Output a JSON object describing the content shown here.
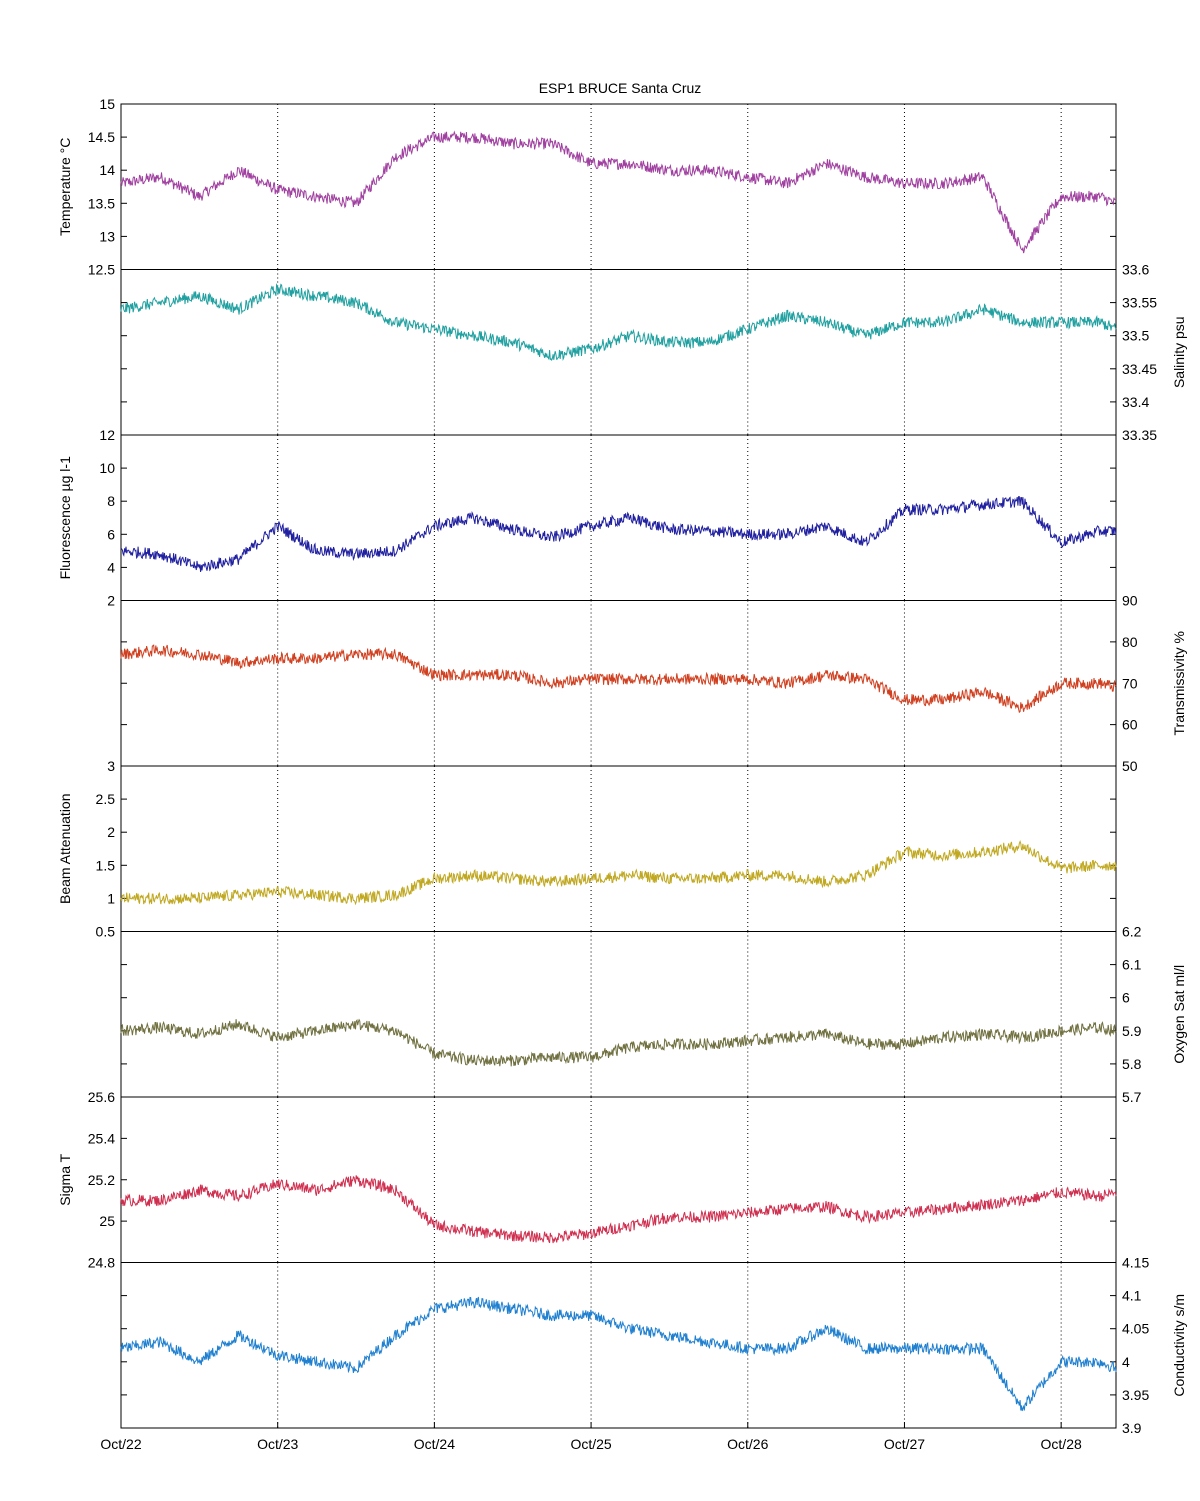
{
  "chart_data": {
    "type": "line",
    "title": "ESP1 BRUCE Santa Cruz",
    "x_ticks": [
      "Oct/22",
      "Oct/23",
      "Oct/24",
      "Oct/25",
      "Oct/26",
      "Oct/27",
      "Oct/28"
    ],
    "xlim": [
      "Oct/22 00:00",
      "Oct/28 09:00"
    ],
    "grid": "vertical dotted lines at day ticks",
    "x_days": [
      0,
      0.25,
      0.5,
      0.75,
      1.0,
      1.25,
      1.5,
      1.75,
      2.0,
      2.25,
      2.5,
      2.75,
      3.0,
      3.25,
      3.5,
      3.75,
      4.0,
      4.25,
      4.5,
      4.75,
      5.0,
      5.25,
      5.5,
      5.75,
      6.0,
      6.25,
      6.35
    ],
    "panels": [
      {
        "name": "Temperature °C",
        "axis_side": "left",
        "color": "#a040a0",
        "ylim": [
          12.5,
          15
        ],
        "ticks": [
          "12.5",
          "13",
          "13.5",
          "14",
          "14.5",
          "15"
        ],
        "values": [
          13.8,
          13.9,
          13.6,
          14.0,
          13.7,
          13.6,
          13.5,
          14.2,
          14.5,
          14.5,
          14.4,
          14.4,
          14.1,
          14.1,
          14.0,
          14.0,
          13.9,
          13.8,
          14.1,
          13.9,
          13.8,
          13.8,
          13.9,
          12.8,
          13.6,
          13.6,
          13.5
        ]
      },
      {
        "name": "Salinity psu",
        "axis_side": "right",
        "color": "#20a0a0",
        "ylim": [
          33.35,
          33.6
        ],
        "ticks": [
          "33.35",
          "33.4",
          "33.45",
          "33.5",
          "33.55",
          "33.6"
        ],
        "values": [
          33.54,
          33.55,
          33.56,
          33.54,
          33.57,
          33.56,
          33.55,
          33.52,
          33.51,
          33.5,
          33.49,
          33.47,
          33.48,
          33.5,
          33.49,
          33.49,
          33.51,
          33.53,
          33.52,
          33.5,
          33.52,
          33.52,
          33.54,
          33.52,
          33.52,
          33.52,
          33.51
        ]
      },
      {
        "name": "Fluorescence µg l-1",
        "axis_side": "left",
        "color": "#2020a0",
        "ylim": [
          2,
          12
        ],
        "ticks": [
          "2",
          "4",
          "6",
          "8",
          "10",
          "12"
        ],
        "values": [
          5.0,
          4.8,
          4.0,
          4.5,
          6.5,
          5.0,
          4.8,
          5.0,
          6.5,
          7.0,
          6.3,
          5.8,
          6.5,
          7.0,
          6.3,
          6.2,
          6.0,
          6.0,
          6.5,
          5.5,
          7.5,
          7.5,
          7.8,
          8.0,
          5.5,
          6.2,
          6.2
        ]
      },
      {
        "name": "Transmissivity %",
        "axis_side": "right",
        "color": "#d04020",
        "ylim": [
          50,
          90
        ],
        "ticks": [
          "50",
          "60",
          "70",
          "80",
          "90"
        ],
        "values": [
          77,
          78,
          77,
          75,
          76,
          76,
          77,
          77,
          72,
          72,
          72,
          70,
          71,
          71,
          71,
          71,
          71,
          70,
          72,
          71,
          66,
          66,
          68,
          64,
          70,
          70,
          69
        ]
      },
      {
        "name": "Beam Attenuation",
        "axis_side": "left",
        "color": "#c0a820",
        "ylim": [
          0.5,
          3
        ],
        "ticks": [
          "0.5",
          "1",
          "1.5",
          "2",
          "2.5",
          "3"
        ],
        "values": [
          1.0,
          1.0,
          1.0,
          1.05,
          1.1,
          1.05,
          1.0,
          1.05,
          1.3,
          1.35,
          1.3,
          1.25,
          1.3,
          1.35,
          1.3,
          1.3,
          1.35,
          1.35,
          1.25,
          1.35,
          1.7,
          1.65,
          1.7,
          1.8,
          1.45,
          1.5,
          1.5
        ]
      },
      {
        "name": "Oxygen Sat ml/l",
        "axis_side": "right",
        "color": "#707040",
        "ylim": [
          5.7,
          6.2
        ],
        "ticks": [
          "5.7",
          "5.8",
          "5.9",
          "6",
          "6.1",
          "6.2"
        ],
        "values": [
          5.9,
          5.91,
          5.89,
          5.92,
          5.88,
          5.9,
          5.92,
          5.9,
          5.83,
          5.81,
          5.81,
          5.82,
          5.82,
          5.85,
          5.86,
          5.86,
          5.87,
          5.88,
          5.89,
          5.86,
          5.86,
          5.88,
          5.89,
          5.88,
          5.9,
          5.91,
          5.9
        ]
      },
      {
        "name": "Sigma T",
        "axis_side": "left",
        "color": "#d03050",
        "ylim": [
          24.8,
          25.6
        ],
        "ticks": [
          "24.8",
          "25",
          "25.2",
          "25.4",
          "25.6"
        ],
        "values": [
          25.1,
          25.1,
          25.15,
          25.12,
          25.18,
          25.15,
          25.2,
          25.15,
          24.98,
          24.95,
          24.93,
          24.92,
          24.94,
          24.98,
          25.02,
          25.02,
          25.04,
          25.06,
          25.07,
          25.02,
          25.04,
          25.06,
          25.08,
          25.1,
          25.14,
          25.12,
          25.14
        ]
      },
      {
        "name": "Conductivity s/m",
        "axis_side": "right",
        "color": "#2080d0",
        "ylim": [
          3.9,
          4.15
        ],
        "ticks": [
          "3.9",
          "3.95",
          "4",
          "4.05",
          "4.1",
          "4.15"
        ],
        "values": [
          4.02,
          4.03,
          4.0,
          4.04,
          4.01,
          4.0,
          3.99,
          4.04,
          4.08,
          4.09,
          4.08,
          4.07,
          4.07,
          4.05,
          4.04,
          4.03,
          4.02,
          4.02,
          4.05,
          4.02,
          4.02,
          4.02,
          4.02,
          3.93,
          4.0,
          4.0,
          3.99
        ]
      }
    ]
  }
}
